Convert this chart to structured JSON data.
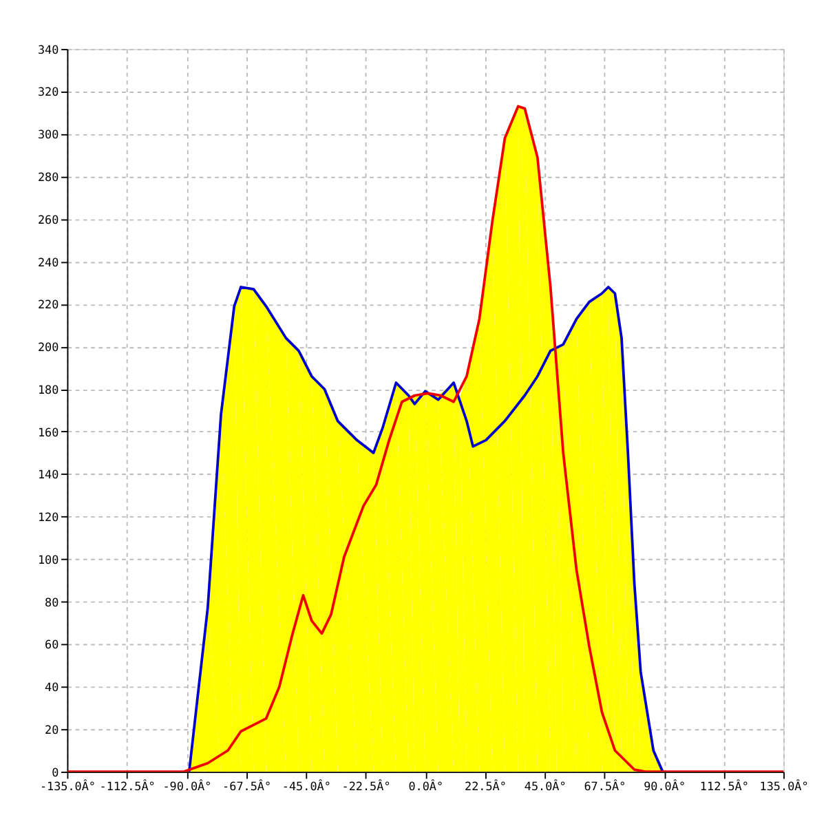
{
  "chart_data": {
    "type": "line",
    "xlim": [
      -135,
      135
    ],
    "xticks": [
      {
        "value": -135,
        "label": "-135.0Â°"
      },
      {
        "value": -112.5,
        "label": "-112.5Â°"
      },
      {
        "value": -90,
        "label": "-90.0Â°"
      },
      {
        "value": -67.5,
        "label": "-67.5Â°"
      },
      {
        "value": -45,
        "label": "-45.0Â°"
      },
      {
        "value": -22.5,
        "label": "-22.5Â°"
      },
      {
        "value": 0,
        "label": "0.0Â°"
      },
      {
        "value": 22.5,
        "label": "22.5Â°"
      },
      {
        "value": 45,
        "label": "45.0Â°"
      },
      {
        "value": 67.5,
        "label": "67.5Â°"
      },
      {
        "value": 90,
        "label": "90.0Â°"
      },
      {
        "value": 112.5,
        "label": "112.5Â°"
      },
      {
        "value": 135,
        "label": "135.0Â°"
      }
    ],
    "ylim": [
      0,
      340
    ],
    "yticks": [
      0,
      20,
      40,
      60,
      80,
      100,
      120,
      140,
      160,
      180,
      200,
      220,
      240,
      260,
      280,
      300,
      320,
      340
    ],
    "grid": true,
    "series": [
      {
        "type": "area",
        "color": "#ffff00",
        "x": [
          -91,
          -89,
          -82,
          -77,
          -72,
          -69.5,
          -64.7,
          -60,
          -52.5,
          -47.7,
          -42.8,
          -38,
          -33,
          -25.8,
          -19.5,
          -16,
          -11,
          -6.3,
          -4,
          0,
          4.9,
          10.7,
          13,
          15.6,
          20.4,
          25.3,
          30,
          35,
          37.5,
          42.3,
          47.2,
          49.5,
          52,
          57,
          61.8,
          66.6,
          69,
          71.5,
          74,
          76.4,
          78.8,
          81.2,
          86,
          89.5
        ],
        "values": [
          0,
          1,
          77,
          168,
          219,
          228,
          227,
          219,
          204,
          198,
          186,
          180,
          165,
          156,
          150,
          162,
          183,
          177,
          177,
          179,
          177,
          183,
          176,
          186,
          213,
          259,
          298,
          313,
          312,
          289,
          228,
          199,
          201,
          213,
          221,
          225,
          228,
          225,
          204,
          150,
          89,
          47,
          10,
          0
        ]
      },
      {
        "color": "#0000cc",
        "x": [
          -89,
          -82,
          -77,
          -72,
          -69.5,
          -64.7,
          -60,
          -52.5,
          -47.7,
          -42.8,
          -38,
          -33,
          -25.8,
          -19.5,
          -16,
          -11,
          -6.3,
          -4,
          0,
          4.9,
          10.7,
          15.6,
          18,
          22.9,
          30,
          37.5,
          42.3,
          47.2,
          52,
          57,
          61.8,
          66.6,
          69,
          71.5,
          74,
          76.4,
          78.8,
          81.2,
          86,
          89.5
        ],
        "values": [
          0,
          77,
          168,
          219,
          228,
          227,
          219,
          204,
          198,
          186,
          180,
          165,
          156,
          150,
          162,
          183,
          177,
          173,
          179,
          175,
          183,
          165,
          153,
          156,
          165,
          177,
          186,
          198,
          201,
          213,
          221,
          225,
          228,
          225,
          204,
          150,
          89,
          47,
          10,
          0
        ]
      },
      {
        "color": "#ee0000",
        "x": [
          -135,
          -91,
          -82,
          -74.4,
          -69.5,
          -64.7,
          -60,
          -55,
          -50,
          -46,
          -42.8,
          -39,
          -35.5,
          -30.6,
          -23.3,
          -18.5,
          -13.6,
          -8.8,
          -3.9,
          1,
          5.8,
          10.7,
          15.6,
          20.4,
          25.3,
          30,
          35,
          37.5,
          42.3,
          47.2,
          52,
          57,
          61.8,
          66.6,
          71.5,
          78.8,
          83,
          135
        ],
        "values": [
          0,
          0,
          4,
          10,
          19,
          22,
          25,
          40,
          65,
          83,
          71,
          65,
          74,
          101,
          125,
          135,
          156,
          174,
          177,
          178,
          177,
          174,
          186,
          213,
          259,
          298,
          313,
          312,
          289,
          228,
          150,
          95,
          59,
          28,
          10,
          1,
          0,
          0
        ]
      }
    ]
  }
}
